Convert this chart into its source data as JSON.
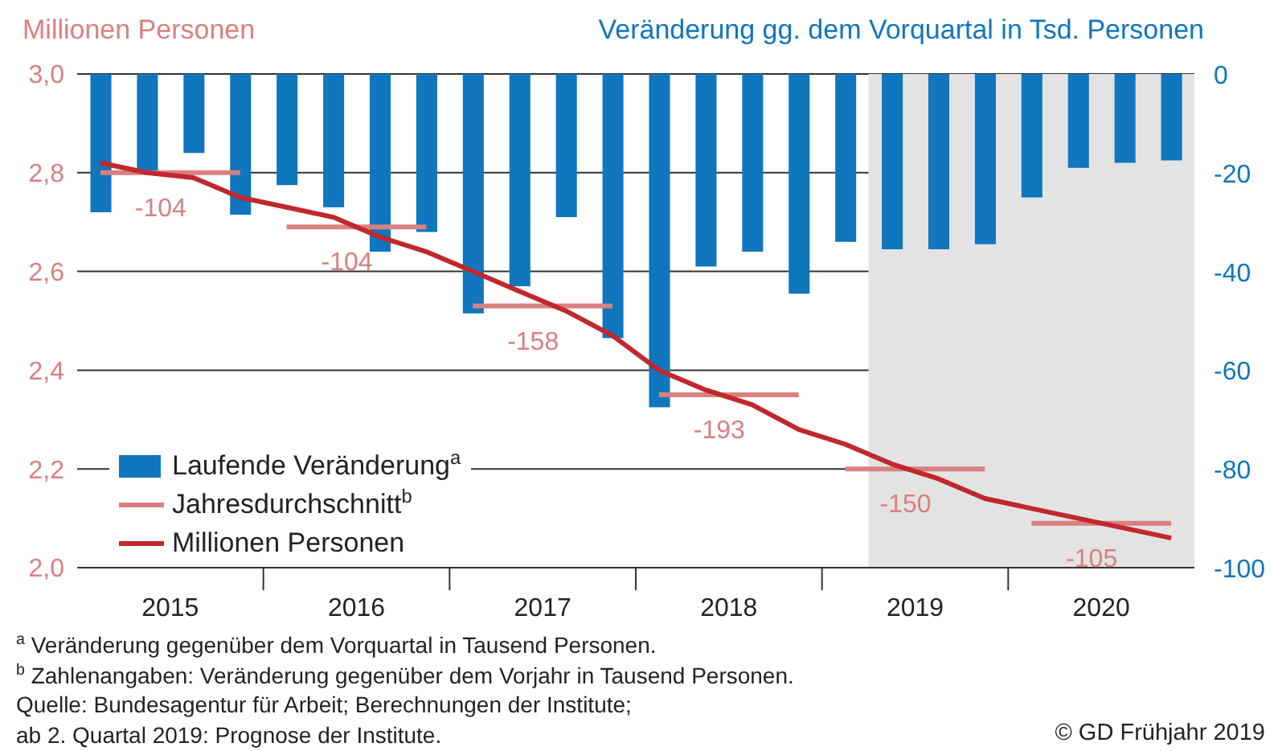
{
  "chart_data": {
    "type": "bar",
    "ylabel": "Millionen Personen",
    "y2label": "Veränderung gg. dem Vorquartal in Tsd. Personen",
    "x": [
      2015.125,
      2015.375,
      2015.625,
      2015.875,
      2016.125,
      2016.375,
      2016.625,
      2016.875,
      2017.125,
      2017.375,
      2017.625,
      2017.875,
      2018.125,
      2018.375,
      2018.625,
      2018.875,
      2019.125,
      2019.375,
      2019.625,
      2019.875,
      2020.125,
      2020.375,
      2020.625,
      2020.875
    ],
    "series": [
      {
        "name": "Laufende Veränderung$^{a}$",
        "type": "bar",
        "axis": "y2",
        "color": "#1076bd",
        "values": [
          -28,
          -20,
          -16,
          -28.5,
          -22.5,
          -27,
          -36,
          -32,
          -48.5,
          -43,
          -29,
          -53.5,
          -67.5,
          -39,
          -36,
          -44.5,
          -34,
          -35.5,
          -35.5,
          -34.5,
          -25,
          -19,
          -18,
          -17.5
        ]
      },
      {
        "name": "Jahresdurchschnitt$^{b}$",
        "type": "line",
        "axis": "y",
        "color": "#d98080",
        "x": [
          2015.125,
          2015.875,
          2016,
          2016.125,
          2016.875,
          2017,
          2017.125,
          2017.875,
          2018,
          2018.125,
          2018.875,
          2019,
          2019.125,
          2019.875,
          2020,
          2020.125,
          2020.875
        ],
        "values": [
          2.8,
          2.8,
          null,
          2.69,
          2.69,
          null,
          2.53,
          2.53,
          null,
          2.35,
          2.35,
          null,
          2.2,
          2.2,
          null,
          2.09,
          2.09
        ]
      },
      {
        "name": "Millionen Personen",
        "type": "line",
        "axis": "y",
        "color": "#c0282d",
        "values": [
          2.82,
          2.8,
          2.79,
          2.75,
          2.73,
          2.71,
          2.67,
          2.64,
          2.6,
          2.56,
          2.52,
          2.47,
          2.4,
          2.36,
          2.33,
          2.28,
          2.25,
          2.21,
          2.18,
          2.14,
          2.12,
          2.1,
          2.08,
          2.06
        ]
      }
    ],
    "xlim": [
      2015,
      2021
    ],
    "xticks": [
      {
        "value": 2015.5,
        "label": "2015"
      },
      {
        "value": 2016,
        "label": null
      },
      {
        "value": 2016.5,
        "label": "2016"
      },
      {
        "value": 2017,
        "label": null
      },
      {
        "value": 2017.5,
        "label": "2017"
      },
      {
        "value": 2018,
        "label": null
      },
      {
        "value": 2018.5,
        "label": "2018"
      },
      {
        "value": 2019,
        "label": null
      },
      {
        "value": 2019.5,
        "label": "2019"
      },
      {
        "value": 2020,
        "label": null
      },
      {
        "value": 2020.5,
        "label": "2020"
      }
    ],
    "ylim": [
      2,
      3
    ],
    "yticks": [
      {
        "value": 2,
        "label": "2,0"
      },
      {
        "value": 2.2,
        "label": "2,2"
      },
      {
        "value": 2.4,
        "label": "2,4"
      },
      {
        "value": 2.6,
        "label": "2,6"
      },
      {
        "value": 2.8,
        "label": "2,8"
      },
      {
        "value": 3,
        "label": "3,0"
      }
    ],
    "y2lim": [
      -100,
      0
    ],
    "y2ticks": [
      -100,
      -80,
      -60,
      -40,
      -20,
      0
    ],
    "bands": [
      {
        "axis": "x",
        "from": 2019.25,
        "to": 2021,
        "color": "#e3e3e3"
      }
    ],
    "annotations": [
      {
        "text": "-104",
        "x": 2015.5,
        "y": 2.8
      },
      {
        "text": "-104",
        "x": 2016.5,
        "y": 2.69
      },
      {
        "text": "-158",
        "x": 2017.5,
        "y": 2.53
      },
      {
        "text": "-193",
        "x": 2018.5,
        "y": 2.35
      },
      {
        "text": "-150",
        "x": 2019.5,
        "y": 2.2
      },
      {
        "text": "-105",
        "x": 2020.5,
        "y": 2.09
      },
      "$^{a}$ Veränderung gegenüber dem Vorquartal in Tausend Personen.",
      "$^{b}$ Zahlenangaben: Veränderung gegenüber dem Vorjahr in Tausend Personen.",
      "Quelle: Bundesagentur für Arbeit; Berechnungen der Institute;",
      "ab 2. Quartal 2019: Prognose der Institute.",
      "© GD Frühjahr 2019"
    ],
    "grid": "y",
    "legend": "bottom left",
    "marker": "none",
    "line_style": "solid"
  }
}
